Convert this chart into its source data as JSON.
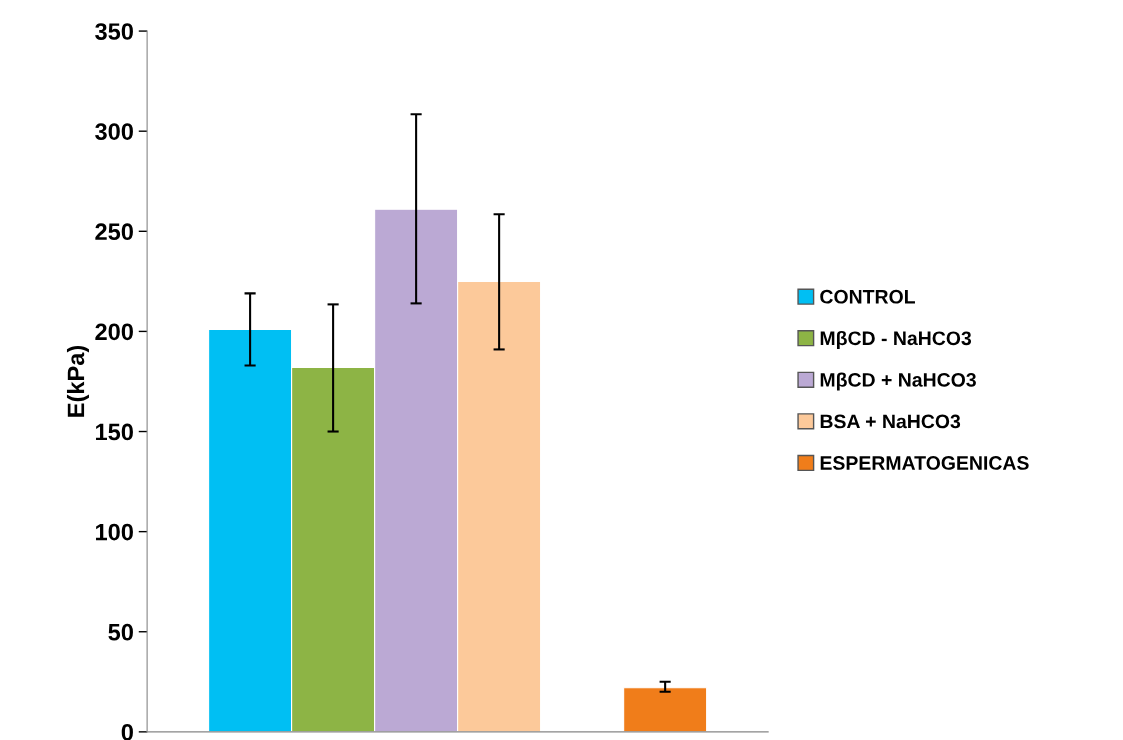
{
  "chart_data": {
    "type": "bar",
    "ylabel": "E(kPa)",
    "categories": [
      null
    ],
    "series": [
      {
        "name": "CONTROL",
        "color": "#00bff3",
        "values": [
          201
        ],
        "errors": [
          [
            183,
            219
          ]
        ]
      },
      {
        "name": "MβCD - NaHCO3",
        "color": "#8db445",
        "values": [
          182
        ],
        "errors": [
          [
            150,
            213.5
          ]
        ]
      },
      {
        "name": "MβCD + NaHCO3",
        "color": "#bba9d4",
        "values": [
          261
        ],
        "errors": [
          [
            214,
            308.5
          ]
        ]
      },
      {
        "name": "BSA + NaHCO3",
        "color": "#fcc99a",
        "values": [
          225
        ],
        "errors": [
          [
            191,
            258.5
          ]
        ]
      },
      {
        "values": [
          null
        ]
      },
      {
        "name": "ESPERMATOGENICAS",
        "color": "#f07d1a",
        "values": [
          22
        ],
        "errors": [
          [
            20,
            25
          ]
        ]
      }
    ],
    "ylim": [
      0,
      350
    ],
    "yticks": [
      0,
      50,
      100,
      150,
      200,
      250,
      300,
      350
    ],
    "tick_labels": "y",
    "legend": "right",
    "grid": false
  }
}
